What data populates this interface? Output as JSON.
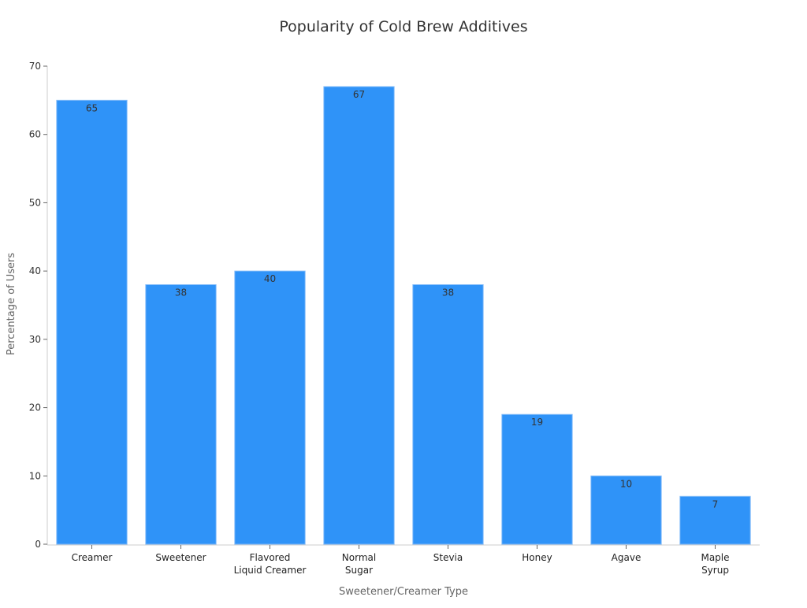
{
  "chart_data": {
    "type": "bar",
    "title": "Popularity of Cold Brew Additives",
    "xlabel": "Sweetener/Creamer Type",
    "ylabel": "Percentage of Users",
    "categories": [
      [
        "Creamer"
      ],
      [
        "Sweetener"
      ],
      [
        "Flavored",
        "Liquid Creamer"
      ],
      [
        "Normal",
        "Sugar"
      ],
      [
        "Stevia"
      ],
      [
        "Honey"
      ],
      [
        "Agave"
      ],
      [
        "Maple",
        "Syrup"
      ]
    ],
    "values": [
      65,
      38,
      40,
      67,
      38,
      19,
      10,
      7
    ],
    "ylim": [
      0,
      70
    ],
    "yticks": [
      0,
      10,
      20,
      30,
      40,
      50,
      60,
      70
    ],
    "grid": false,
    "data_labels": true,
    "bar_color": "#2f93f8"
  }
}
